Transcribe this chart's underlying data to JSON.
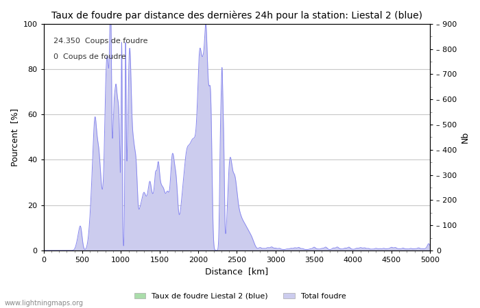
{
  "title": "Taux de foudre par distance des dernières 24h pour la station: Liestal 2 (blue)",
  "xlabel": "Distance  [km]",
  "ylabel_left": "Pourcent  [%]",
  "ylabel_right": "Nb",
  "annotation_line1": "24.350  Coups de foudre",
  "annotation_line2": "0  Coups de foudre",
  "xlim": [
    0,
    5000
  ],
  "ylim_left": [
    0,
    100
  ],
  "ylim_right": [
    0,
    900
  ],
  "xticks": [
    0,
    500,
    1000,
    1500,
    2000,
    2500,
    3000,
    3500,
    4000,
    4500,
    5000
  ],
  "yticks_left": [
    0,
    20,
    40,
    60,
    80,
    100
  ],
  "yticks_right": [
    0,
    100,
    200,
    300,
    400,
    500,
    600,
    700,
    800,
    900
  ],
  "legend_label_green": "Taux de foudre Liestal 2 (blue)",
  "legend_label_blue": "Total foudre",
  "watermark": "www.lightningmaps.org",
  "bg_color": "#ffffff",
  "grid_color": "#c8c8c8",
  "line_color": "#8888ee",
  "fill_color_blue": "#ccccee",
  "fill_color_green": "#aaddaa",
  "title_fontsize": 10,
  "axis_fontsize": 9,
  "tick_fontsize": 8,
  "minor_tick_color": "#888888"
}
